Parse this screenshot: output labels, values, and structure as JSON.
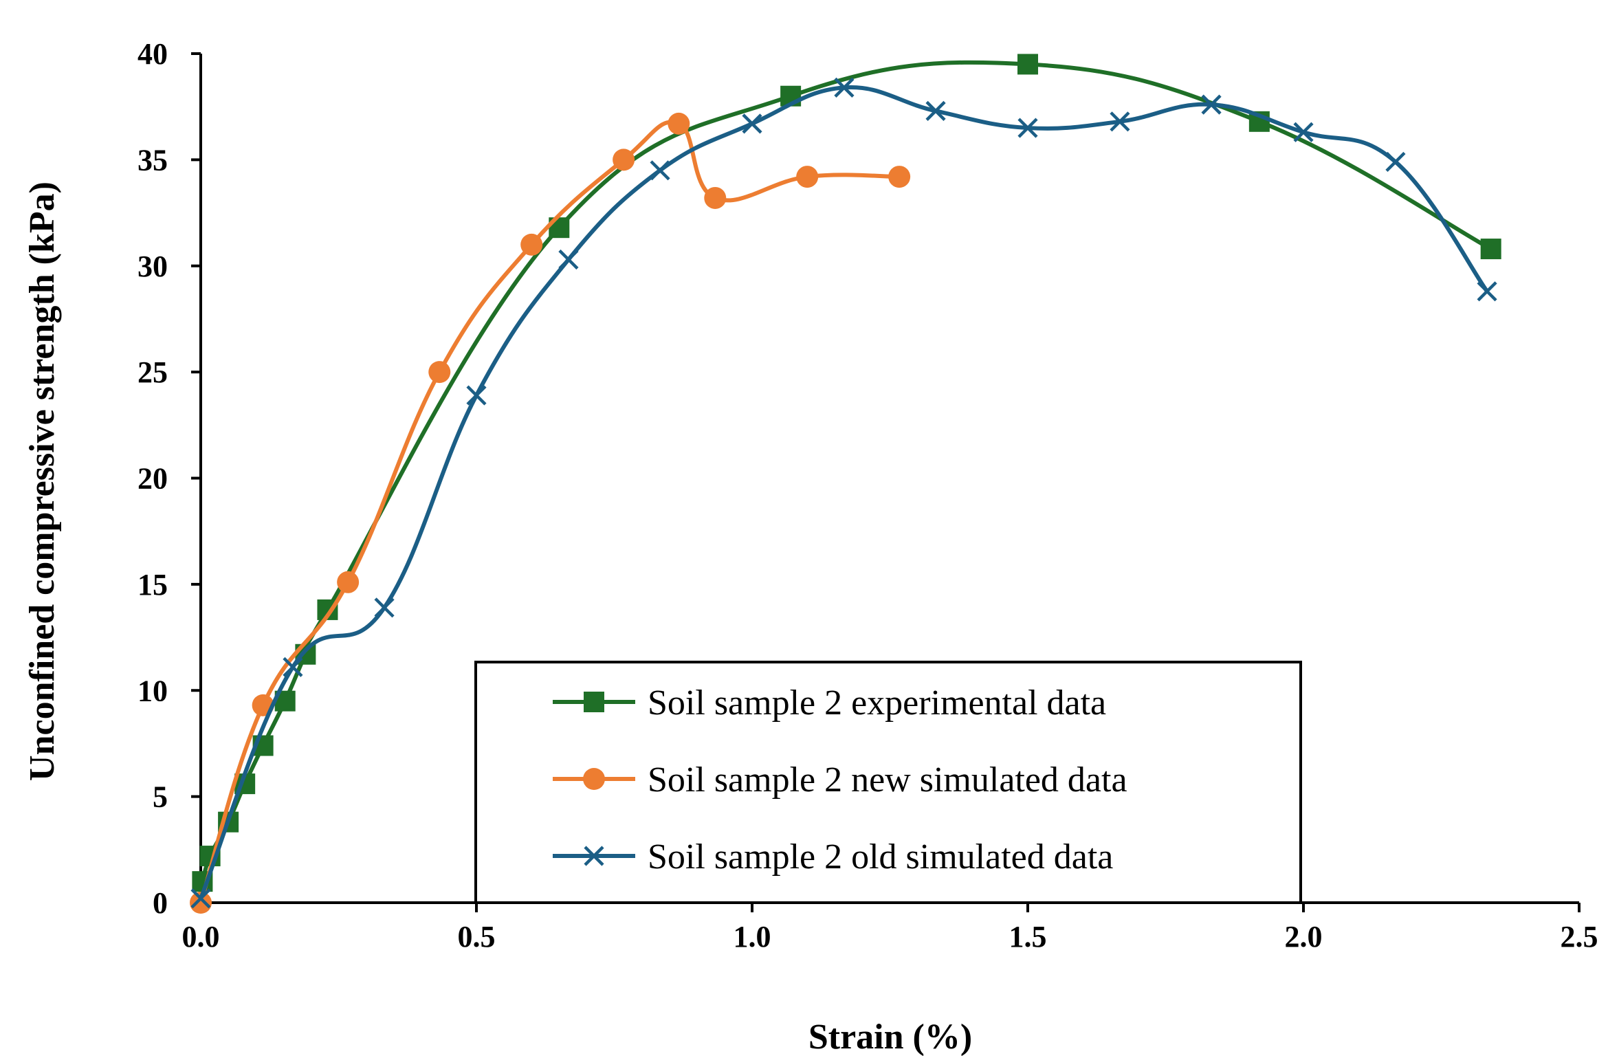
{
  "chart_data": {
    "type": "line",
    "xlabel": "Strain (%)",
    "ylabel": "Unconfined compressive strength (kPa)",
    "xlim": [
      0,
      2.5
    ],
    "ylim": [
      0,
      40
    ],
    "x_ticks": [
      "0.0",
      "0.5",
      "1.0",
      "1.5",
      "2.0",
      "2.5"
    ],
    "y_ticks": [
      "0",
      "5",
      "10",
      "15",
      "20",
      "25",
      "30",
      "35",
      "40"
    ],
    "grid": false,
    "legend_position": "bottom-center",
    "series": [
      {
        "name": "Soil sample 2 experimental data",
        "color": "#1f6f27",
        "marker": "square",
        "x": [
          0.003,
          0.017,
          0.05,
          0.08,
          0.113,
          0.153,
          0.19,
          0.23,
          0.65,
          1.07,
          1.5,
          1.92,
          2.34
        ],
        "y": [
          1.0,
          2.2,
          3.8,
          5.6,
          7.4,
          9.5,
          11.7,
          13.8,
          31.8,
          38.0,
          39.5,
          36.8,
          30.8
        ]
      },
      {
        "name": "Soil sample 2 new simulated data",
        "color": "#ed7d31",
        "marker": "circle",
        "x": [
          0.0,
          0.113,
          0.267,
          0.433,
          0.6,
          0.767,
          0.867,
          0.933,
          1.1,
          1.267
        ],
        "y": [
          0.0,
          9.3,
          15.1,
          25.0,
          31.0,
          35.0,
          36.7,
          33.2,
          34.2,
          34.2
        ]
      },
      {
        "name": "Soil sample 2 old simulated data",
        "color": "#1b5e86",
        "marker": "x",
        "x": [
          0.0,
          0.167,
          0.333,
          0.5,
          0.667,
          0.833,
          1.0,
          1.167,
          1.333,
          1.5,
          1.667,
          1.833,
          2.0,
          2.167,
          2.333
        ],
        "y": [
          0.2,
          11.1,
          13.9,
          23.9,
          30.3,
          34.5,
          36.7,
          38.4,
          37.3,
          36.5,
          36.8,
          37.6,
          36.3,
          34.9,
          28.8
        ]
      }
    ]
  }
}
